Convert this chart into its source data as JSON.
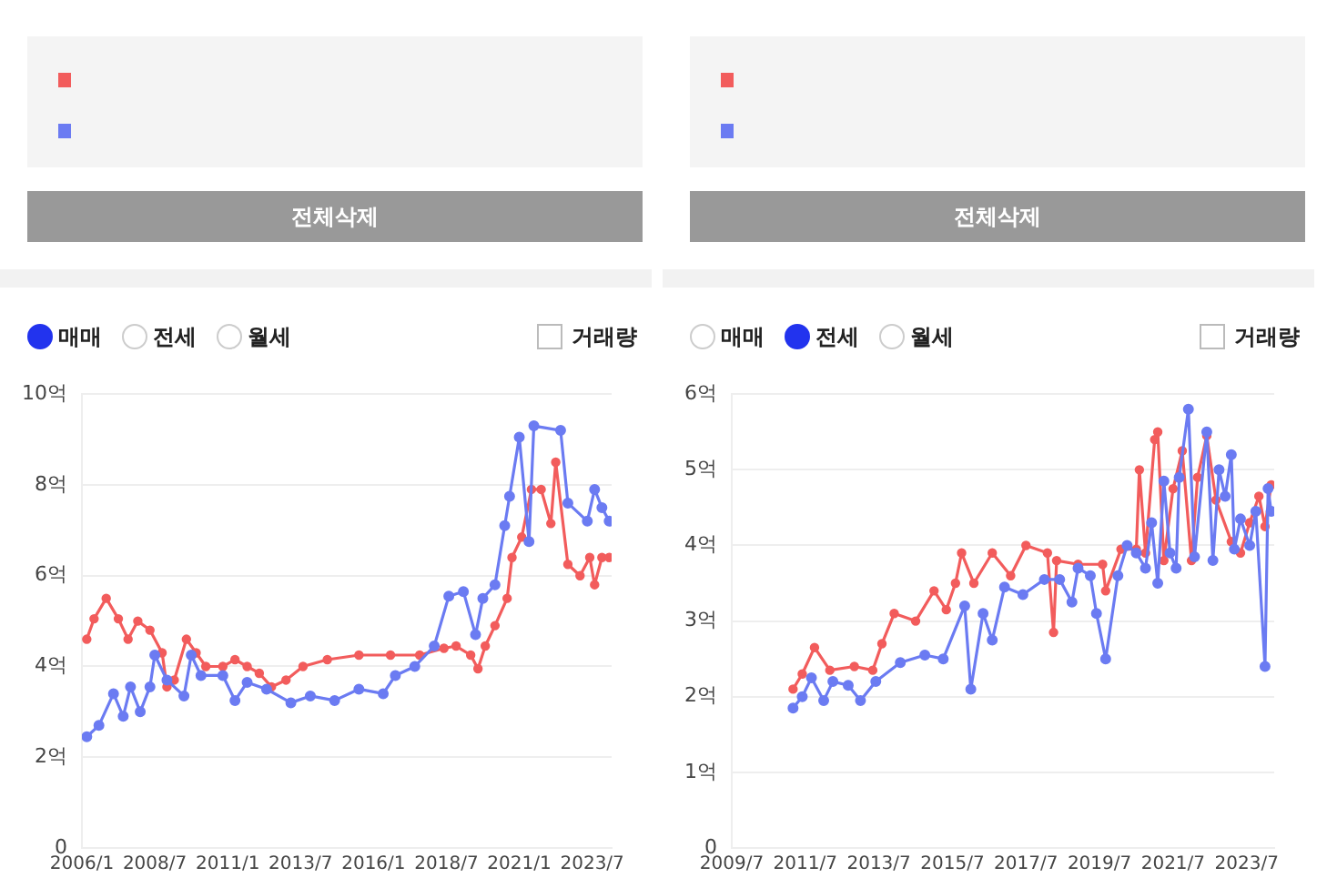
{
  "chart_data": [
    {
      "type": "line",
      "marker": "circle",
      "grid": "y",
      "legend": false,
      "annotations": [
        "전체삭제",
        "매매",
        "전세",
        "월세",
        "거래량"
      ],
      "xlim": [
        "2006-01",
        "2024-03"
      ],
      "xticks": [
        {
          "value": "2006-01",
          "label": "2006/1"
        },
        {
          "value": "2008-07",
          "label": "2008/7"
        },
        {
          "value": "2011-01",
          "label": "2011/1"
        },
        {
          "value": "2013-07",
          "label": "2013/7"
        },
        {
          "value": "2016-01",
          "label": "2016/1"
        },
        {
          "value": "2018-07",
          "label": "2018/7"
        },
        {
          "value": "2021-01",
          "label": "2021/1"
        },
        {
          "value": "2023-07",
          "label": "2023/7"
        }
      ],
      "ylim": [
        0,
        10
      ],
      "yticks": [
        0,
        {
          "value": 2,
          "label": "2억"
        },
        {
          "value": 4,
          "label": "4억"
        },
        {
          "value": 6,
          "label": "6억"
        },
        {
          "value": 8,
          "label": "8억"
        },
        {
          "value": 10,
          "label": "10억"
        }
      ],
      "series": [
        {
          "color": "#f25c5c",
          "x": [
            "2006-03",
            "2006-06",
            "2006-11",
            "2007-04",
            "2007-08",
            "2007-12",
            "2008-05",
            "2008-10",
            "2008-12",
            "2009-03",
            "2009-08",
            "2009-12",
            "2010-04",
            "2010-11",
            "2011-04",
            "2011-09",
            "2012-02",
            "2012-07",
            "2013-01",
            "2013-08",
            "2014-06",
            "2015-07",
            "2016-08",
            "2017-08",
            "2018-06",
            "2018-11",
            "2019-05",
            "2019-08",
            "2019-11",
            "2020-03",
            "2020-08",
            "2020-10",
            "2021-02",
            "2021-06",
            "2021-10",
            "2022-02",
            "2022-04",
            "2022-09",
            "2023-02",
            "2023-06",
            "2023-08",
            "2023-11",
            "2024-02"
          ],
          "values": [
            4.6,
            5.05,
            5.5,
            5.05,
            4.6,
            5.0,
            4.8,
            4.3,
            3.55,
            3.7,
            4.6,
            4.3,
            4.0,
            4.0,
            4.15,
            4.0,
            3.85,
            3.55,
            3.7,
            4.0,
            4.15,
            4.25,
            4.25,
            4.25,
            4.4,
            4.45,
            4.25,
            3.95,
            4.45,
            4.9,
            5.5,
            6.4,
            6.85,
            7.9,
            7.9,
            7.15,
            8.5,
            6.25,
            6.0,
            6.4,
            5.8,
            6.4,
            6.4
          ]
        },
        {
          "color": "#6b7bf2",
          "x": [
            "2006-03",
            "2006-08",
            "2007-02",
            "2007-06",
            "2007-09",
            "2008-01",
            "2008-05",
            "2008-07",
            "2008-12",
            "2009-07",
            "2009-10",
            "2010-02",
            "2010-11",
            "2011-04",
            "2011-09",
            "2012-05",
            "2013-03",
            "2013-11",
            "2014-09",
            "2015-07",
            "2016-05",
            "2016-10",
            "2017-06",
            "2018-02",
            "2018-08",
            "2019-02",
            "2019-07",
            "2019-10",
            "2020-03",
            "2020-07",
            "2020-09",
            "2021-01",
            "2021-05",
            "2021-07",
            "2022-06",
            "2022-09",
            "2023-05",
            "2023-08",
            "2023-11",
            "2024-02"
          ],
          "values": [
            2.45,
            2.7,
            3.4,
            2.9,
            3.55,
            3.0,
            3.55,
            4.25,
            3.7,
            3.35,
            4.25,
            3.8,
            3.8,
            3.25,
            3.65,
            3.5,
            3.2,
            3.35,
            3.25,
            3.5,
            3.4,
            3.8,
            4.0,
            4.45,
            5.55,
            5.65,
            4.7,
            5.5,
            5.8,
            7.1,
            7.75,
            9.05,
            6.75,
            9.3,
            9.2,
            7.6,
            7.2,
            7.9,
            7.5,
            7.2
          ]
        }
      ]
    },
    {
      "type": "line",
      "marker": "circle",
      "grid": "y",
      "legend": false,
      "annotations": [
        "전체삭제",
        "매매",
        "전세",
        "월세",
        "거래량"
      ],
      "xlim": [
        "2009-07",
        "2024-04"
      ],
      "xticks": [
        {
          "value": "2009-07",
          "label": "2009/7"
        },
        {
          "value": "2011-07",
          "label": "2011/7"
        },
        {
          "value": "2013-07",
          "label": "2013/7"
        },
        {
          "value": "2015-07",
          "label": "2015/7"
        },
        {
          "value": "2017-07",
          "label": "2017/7"
        },
        {
          "value": "2019-07",
          "label": "2019/7"
        },
        {
          "value": "2021-07",
          "label": "2021/7"
        },
        {
          "value": "2023-07",
          "label": "2023/7"
        }
      ],
      "ylim": [
        0,
        6
      ],
      "yticks": [
        0,
        {
          "value": 1,
          "label": "1억"
        },
        {
          "value": 2,
          "label": "2억"
        },
        {
          "value": 3,
          "label": "3억"
        },
        {
          "value": 4,
          "label": "4억"
        },
        {
          "value": 5,
          "label": "5억"
        },
        {
          "value": 6,
          "label": "6억"
        }
      ],
      "series": [
        {
          "color": "#f25c5c",
          "x": [
            "2011-03",
            "2011-06",
            "2011-10",
            "2012-03",
            "2012-11",
            "2013-05",
            "2013-08",
            "2013-12",
            "2014-07",
            "2015-01",
            "2015-05",
            "2015-08",
            "2015-10",
            "2016-02",
            "2016-08",
            "2017-02",
            "2017-07",
            "2018-02",
            "2018-04",
            "2018-05",
            "2018-12",
            "2019-08",
            "2019-09",
            "2020-02",
            "2020-07",
            "2020-08",
            "2020-10",
            "2021-01",
            "2021-02",
            "2021-04",
            "2021-07",
            "2021-10",
            "2022-01",
            "2022-03",
            "2022-06",
            "2022-09",
            "2023-02",
            "2023-05",
            "2023-08",
            "2023-11",
            "2024-01",
            "2024-03"
          ],
          "values": [
            2.1,
            2.3,
            2.65,
            2.35,
            2.4,
            2.35,
            2.7,
            3.1,
            3.0,
            3.4,
            3.15,
            3.5,
            3.9,
            3.5,
            3.9,
            3.6,
            4.0,
            3.9,
            2.85,
            3.8,
            3.75,
            3.75,
            3.4,
            3.95,
            3.95,
            5.0,
            3.9,
            5.4,
            5.5,
            3.8,
            4.75,
            5.25,
            3.8,
            4.9,
            5.45,
            4.6,
            4.05,
            3.9,
            4.3,
            4.65,
            4.25,
            4.8
          ]
        },
        {
          "color": "#6b7bf2",
          "x": [
            "2011-03",
            "2011-06",
            "2011-09",
            "2012-01",
            "2012-04",
            "2012-09",
            "2013-01",
            "2013-06",
            "2014-02",
            "2014-10",
            "2015-04",
            "2015-11",
            "2016-01",
            "2016-05",
            "2016-08",
            "2016-12",
            "2017-06",
            "2018-01",
            "2018-06",
            "2018-10",
            "2018-12",
            "2019-04",
            "2019-06",
            "2019-09",
            "2020-01",
            "2020-04",
            "2020-07",
            "2020-10",
            "2020-12",
            "2021-02",
            "2021-04",
            "2021-06",
            "2021-08",
            "2021-09",
            "2021-12",
            "2022-02",
            "2022-06",
            "2022-08",
            "2022-10",
            "2022-12",
            "2023-02",
            "2023-03",
            "2023-05",
            "2023-08",
            "2023-10",
            "2024-01",
            "2024-02",
            "2024-03"
          ],
          "values": [
            1.85,
            2.0,
            2.25,
            1.95,
            2.2,
            2.15,
            1.95,
            2.2,
            2.45,
            2.55,
            2.5,
            3.2,
            2.1,
            3.1,
            2.75,
            3.45,
            3.35,
            3.55,
            3.55,
            3.25,
            3.7,
            3.6,
            3.1,
            2.5,
            3.6,
            4.0,
            3.9,
            3.7,
            4.3,
            3.5,
            4.85,
            3.9,
            3.7,
            4.9,
            5.8,
            3.85,
            5.5,
            3.8,
            5.0,
            4.65,
            5.2,
            3.95,
            4.35,
            4.0,
            4.45,
            2.4,
            4.75,
            4.45
          ]
        }
      ]
    }
  ]
}
